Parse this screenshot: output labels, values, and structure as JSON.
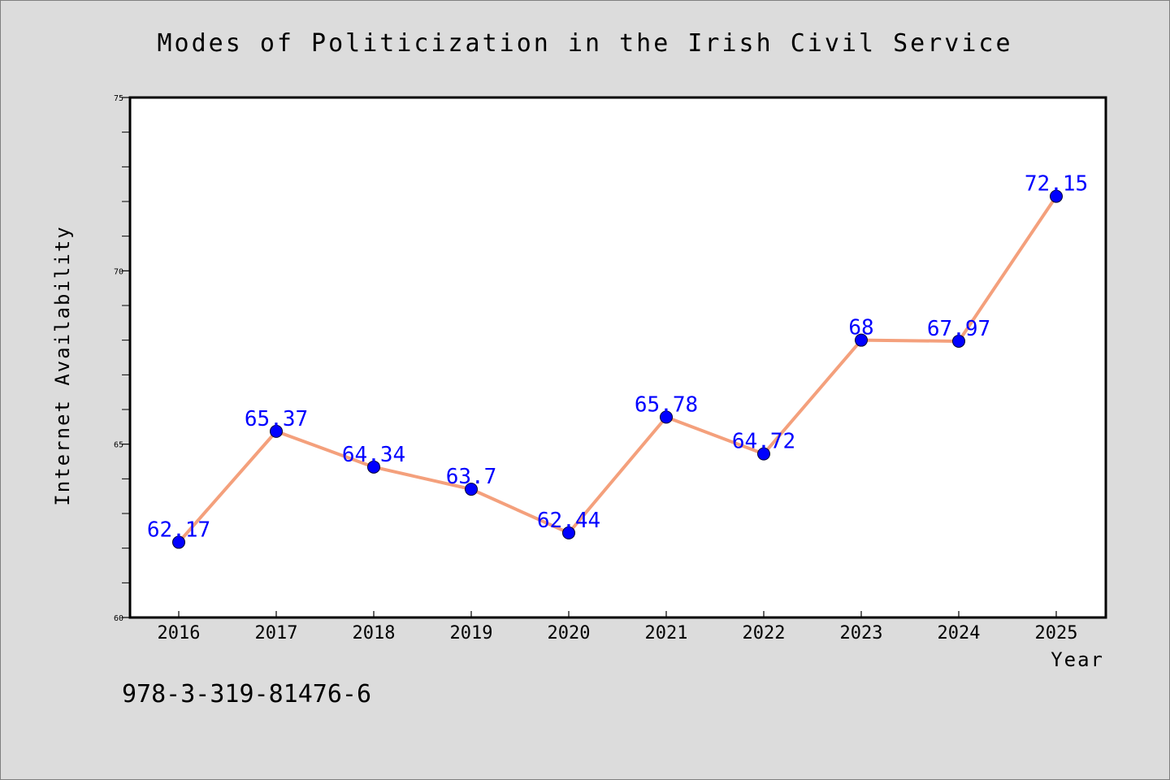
{
  "chart_data": {
    "type": "line",
    "title": "Modes of Politicization in the Irish Civil Service",
    "xlabel": "Year",
    "ylabel": "Internet Availability",
    "x": [
      "2016",
      "2017",
      "2018",
      "2019",
      "2020",
      "2021",
      "2022",
      "2023",
      "2024",
      "2025"
    ],
    "series": [
      {
        "values": [
          62.17,
          65.37,
          64.34,
          63.7,
          62.44,
          65.78,
          64.72,
          68,
          67.97,
          72.15
        ],
        "data_labels": [
          "62.17",
          "65.37",
          "64.34",
          "63.7",
          "62.44",
          "65.78",
          "64.72",
          "68",
          "67.97",
          "72.15"
        ],
        "line_color": "#f4a07c",
        "marker_color": "#0000ff"
      }
    ],
    "ylim": [
      60,
      75
    ],
    "yticks": [
      "60",
      "65",
      "70",
      "75"
    ],
    "grid": false,
    "legend": "none"
  },
  "footer": {
    "isbn": "978-3-319-81476-6"
  },
  "colors": {
    "background": "#dcdcdc",
    "plot_background": "#ffffff",
    "line": "#f4a07c",
    "marker": "#0000ff",
    "data_label": "#0000ff"
  }
}
